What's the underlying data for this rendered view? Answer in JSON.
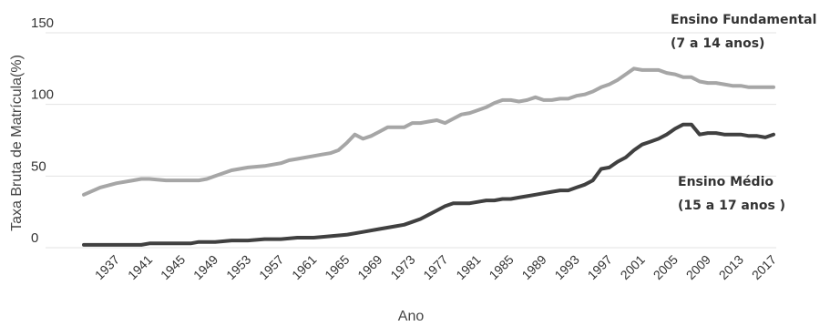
{
  "chart_data": {
    "type": "line",
    "xlabel": "Ano",
    "ylabel": "Taxa Bruta de Matrícula(%)",
    "ylim": [
      0,
      150
    ],
    "yticks": [
      0,
      50,
      100,
      150
    ],
    "xlim": [
      1933,
      2017
    ],
    "xticks": [
      1937,
      1941,
      1945,
      1949,
      1953,
      1957,
      1961,
      1965,
      1969,
      1973,
      1977,
      1981,
      1985,
      1989,
      1993,
      1997,
      2001,
      2005,
      2009,
      2013,
      2017
    ],
    "grid": "horizontal",
    "series": [
      {
        "name_lines": [
          "Ensino Fundamental",
          "(7 a 14 anos)"
        ],
        "color": "#a6a6a6",
        "x": [
          1933,
          1935,
          1937,
          1939,
          1940,
          1941,
          1943,
          1944,
          1945,
          1947,
          1948,
          1949,
          1951,
          1953,
          1955,
          1957,
          1958,
          1959,
          1961,
          1962,
          1963,
          1964,
          1965,
          1966,
          1967,
          1968,
          1969,
          1970,
          1971,
          1972,
          1973,
          1974,
          1975,
          1976,
          1977,
          1978,
          1979,
          1980,
          1981,
          1982,
          1983,
          1984,
          1985,
          1986,
          1987,
          1988,
          1989,
          1990,
          1991,
          1992,
          1993,
          1994,
          1995,
          1996,
          1997,
          1998,
          1999,
          2000,
          2001,
          2002,
          2003,
          2004,
          2005,
          2006,
          2007,
          2008,
          2009,
          2010,
          2011,
          2012,
          2013,
          2014,
          2015,
          2016,
          2017
        ],
        "values": [
          37,
          42,
          45,
          47,
          48,
          48,
          47,
          47,
          47,
          47,
          48,
          50,
          54,
          56,
          57,
          59,
          61,
          62,
          64,
          65,
          66,
          68,
          73,
          79,
          76,
          78,
          81,
          84,
          84,
          84,
          87,
          87,
          88,
          89,
          87,
          90,
          93,
          94,
          96,
          98,
          101,
          103,
          103,
          102,
          103,
          105,
          103,
          103,
          104,
          104,
          106,
          107,
          109,
          112,
          114,
          117,
          121,
          125,
          124,
          124,
          124,
          122,
          121,
          119,
          119,
          116,
          115,
          115,
          114,
          113,
          113,
          112,
          112,
          112,
          112
        ]
      },
      {
        "name_lines": [
          "Ensino Médio",
          "(15 a 17 anos )"
        ],
        "color": "#404040",
        "x": [
          1933,
          1935,
          1937,
          1939,
          1940,
          1941,
          1943,
          1945,
          1946,
          1947,
          1949,
          1951,
          1953,
          1955,
          1957,
          1959,
          1961,
          1963,
          1965,
          1967,
          1969,
          1971,
          1972,
          1973,
          1974,
          1975,
          1976,
          1977,
          1978,
          1979,
          1980,
          1981,
          1982,
          1983,
          1984,
          1985,
          1986,
          1987,
          1988,
          1989,
          1990,
          1991,
          1992,
          1993,
          1994,
          1995,
          1996,
          1997,
          1998,
          1999,
          2000,
          2001,
          2002,
          2003,
          2004,
          2005,
          2006,
          2007,
          2008,
          2009,
          2010,
          2011,
          2012,
          2013,
          2014,
          2015,
          2016,
          2017
        ],
        "values": [
          2,
          2,
          2,
          2,
          2,
          3,
          3,
          3,
          3,
          4,
          4,
          5,
          5,
          6,
          6,
          7,
          7,
          8,
          9,
          11,
          13,
          15,
          16,
          18,
          20,
          23,
          26,
          29,
          31,
          31,
          31,
          32,
          33,
          33,
          34,
          34,
          35,
          36,
          37,
          38,
          39,
          40,
          40,
          42,
          44,
          47,
          55,
          56,
          60,
          63,
          68,
          72,
          74,
          76,
          79,
          83,
          86,
          86,
          79,
          80,
          80,
          79,
          79,
          79,
          78,
          78,
          77,
          79
        ]
      }
    ]
  }
}
